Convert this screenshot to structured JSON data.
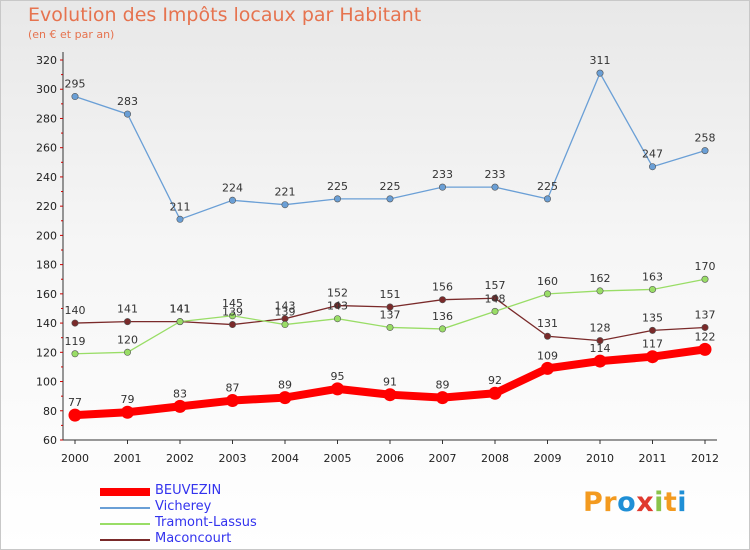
{
  "header": {
    "title": "Evolution des Impôts locaux par Habitant",
    "subtitle": "(en € et par an)"
  },
  "chart_data": {
    "type": "line",
    "title": "Evolution des Impôts locaux par Habitant",
    "subtitle": "(en € et par an)",
    "xlabel": "",
    "ylabel": "",
    "x": [
      "2000",
      "2001",
      "2002",
      "2003",
      "2004",
      "2005",
      "2006",
      "2007",
      "2008",
      "2009",
      "2010",
      "2011",
      "2012"
    ],
    "ylim": [
      60,
      320
    ],
    "yticks": [
      60,
      80,
      100,
      120,
      140,
      160,
      180,
      200,
      220,
      240,
      260,
      280,
      300,
      320
    ],
    "grid": false,
    "legend_position": "bottom-left",
    "series": [
      {
        "name": "BEUVEZIN",
        "color": "#ff0000",
        "emphasis": true,
        "values": [
          77,
          79,
          83,
          87,
          89,
          95,
          91,
          89,
          92,
          109,
          114,
          117,
          122
        ]
      },
      {
        "name": "Vicherey",
        "color": "#6a9fd6",
        "emphasis": false,
        "values": [
          295,
          283,
          211,
          224,
          221,
          225,
          225,
          233,
          233,
          225,
          311,
          247,
          258
        ]
      },
      {
        "name": "Tramont-Lassus",
        "color": "#99dd66",
        "emphasis": false,
        "values": [
          119,
          120,
          141,
          145,
          139,
          143,
          137,
          136,
          148,
          160,
          162,
          163,
          170
        ]
      },
      {
        "name": "Maconcourt",
        "color": "#7a2a2a",
        "emphasis": false,
        "values": [
          140,
          141,
          141,
          139,
          143,
          152,
          151,
          156,
          157,
          131,
          128,
          135,
          137
        ]
      }
    ]
  },
  "logo": {
    "text": "Proxiti",
    "letters": [
      {
        "ch": "P",
        "color": "#f39a1f"
      },
      {
        "ch": "r",
        "color": "#f39a1f"
      },
      {
        "ch": "o",
        "color": "#1f8fd6"
      },
      {
        "ch": "x",
        "color": "#e03a2f"
      },
      {
        "ch": "i",
        "color": "#8bc34a"
      },
      {
        "ch": "t",
        "color": "#f39a1f"
      },
      {
        "ch": "i",
        "color": "#1f8fd6"
      }
    ]
  }
}
